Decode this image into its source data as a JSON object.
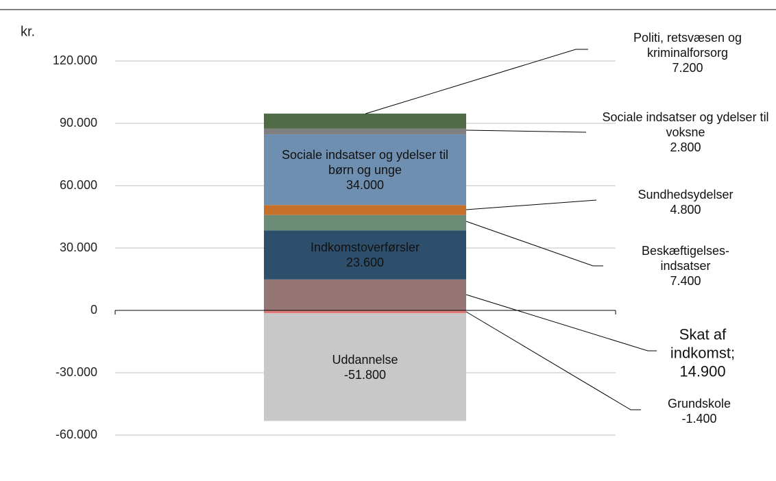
{
  "chart_data": {
    "type": "stacked_bar",
    "y_label": "kr.",
    "ylim": [
      -60000,
      120000
    ],
    "yticks": [
      {
        "value": -60000,
        "label": "-60.000"
      },
      {
        "value": -30000,
        "label": "-30.000"
      },
      0,
      {
        "value": 30000,
        "label": "30.000"
      },
      {
        "value": 60000,
        "label": "60.000"
      },
      {
        "value": 90000,
        "label": "90.000"
      },
      {
        "value": 120000,
        "label": "120.000"
      }
    ],
    "grid": true,
    "series": [
      {
        "name": "Skat af indkomst;",
        "color": "#967674",
        "values": [
          14900
        ],
        "value_labels": [
          "14.900"
        ]
      },
      {
        "name": "Indkomstoverførsler",
        "color": "#2e4f6c",
        "values": [
          23600
        ],
        "value_labels": [
          "23.600"
        ]
      },
      {
        "name": "Beskæftigelses-indsatser",
        "color": "#6b8c77",
        "values": [
          7400
        ],
        "value_labels": [
          "7.400"
        ]
      },
      {
        "name": "Sundhedsydelser",
        "color": "#c5702a",
        "values": [
          4800
        ],
        "value_labels": [
          "4.800"
        ]
      },
      {
        "name": "Sociale indsatser og ydelser til børn og unge",
        "color": "#6f8fb0",
        "values": [
          34000
        ],
        "value_labels": [
          "34.000"
        ]
      },
      {
        "name": "Sociale indsatser og ydelser til voksne",
        "color": "#7f7f7f",
        "values": [
          2800
        ],
        "value_labels": [
          "2.800"
        ]
      },
      {
        "name": "Politi, retsvæsen og kriminalforsorg",
        "color": "#4f6b46",
        "values": [
          7200
        ],
        "value_labels": [
          "7.200"
        ]
      },
      {
        "name": "Grundskole",
        "color": "#e07a7a",
        "values": [
          -1400
        ],
        "value_labels": [
          "-1.400"
        ]
      },
      {
        "name": "Uddannelse",
        "color": "#c8c8c8",
        "values": [
          -51800
        ],
        "value_labels": [
          "-51.800"
        ]
      }
    ]
  }
}
